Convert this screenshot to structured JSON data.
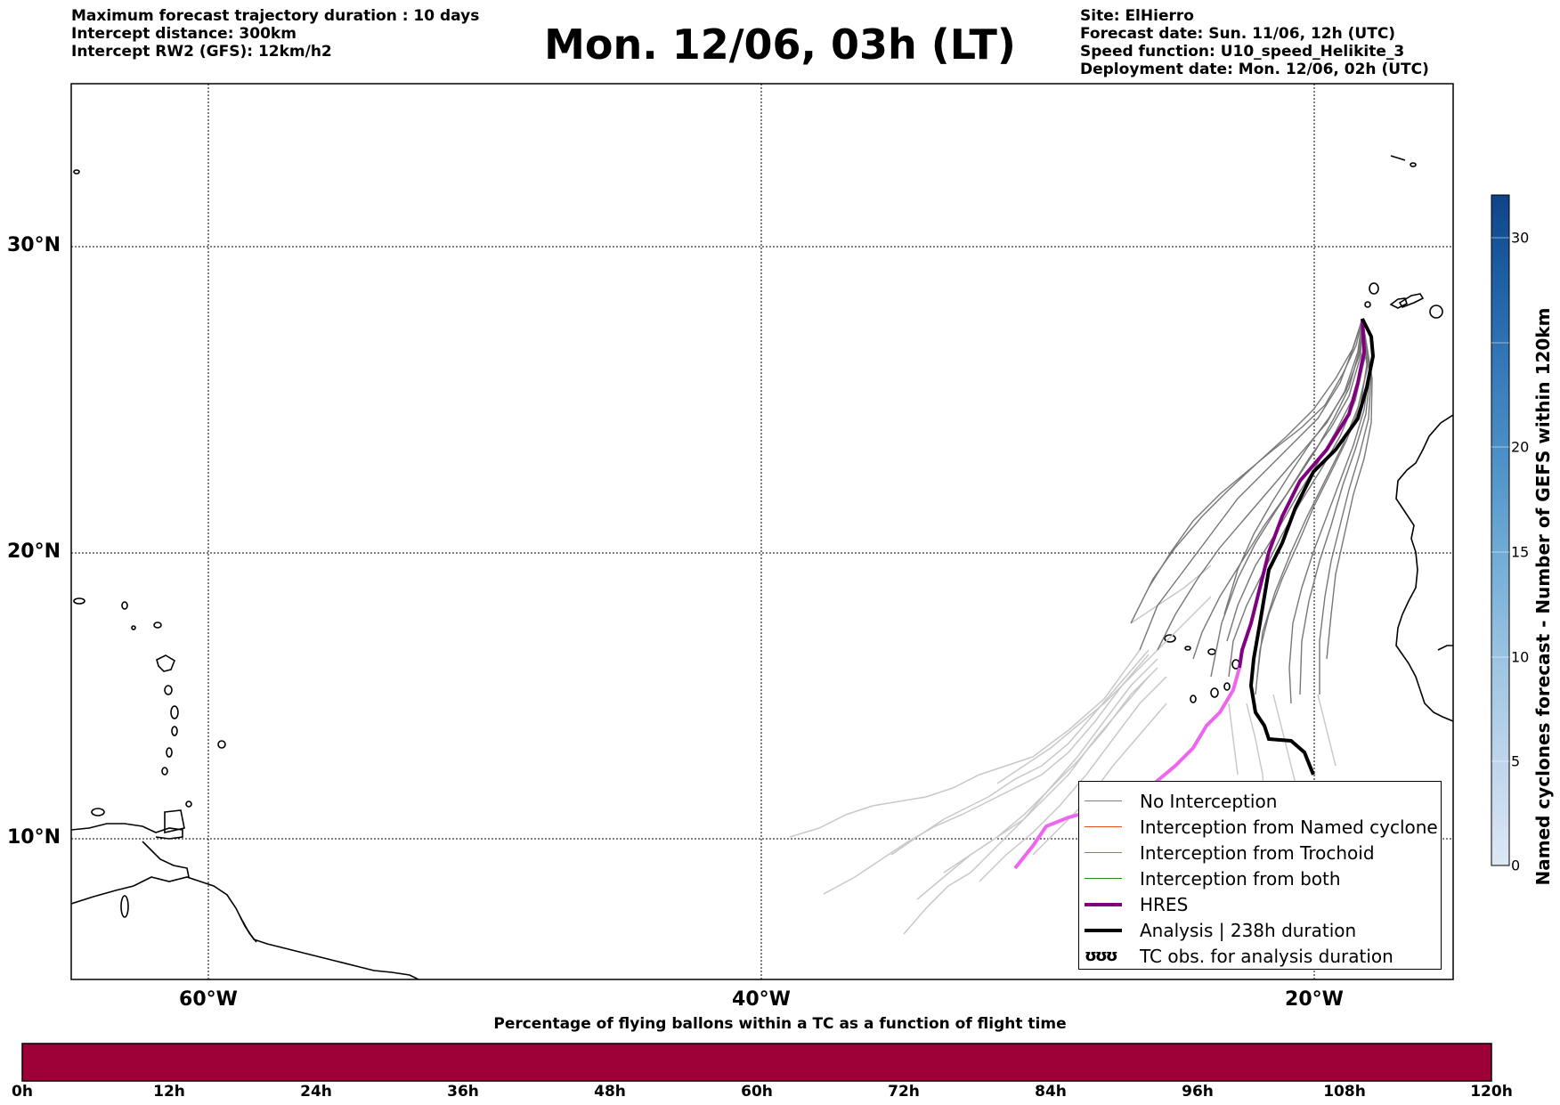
{
  "header_left": {
    "line1": "Maximum forecast trajectory duration : 10 days",
    "line2": "Intercept distance: 300km",
    "line3": "Intercept RW2 (GFS):  12km/h2"
  },
  "main_title": "Mon. 12/06, 03h (LT)",
  "header_right": {
    "site": "Site: ElHierro",
    "forecast_date": "Forecast date: Sun. 11/06, 12h (UTC)",
    "speed_function": "Speed function: U10_speed_Helikite_3",
    "deployment_date": "Deployment date: Mon. 12/06, 02h (UTC)"
  },
  "map": {
    "lat_labels": [
      "30°N",
      "20°N",
      "10°N"
    ],
    "lon_labels": [
      "60°W",
      "40°W",
      "20°W"
    ],
    "gridlines": "dotted"
  },
  "legend": {
    "items": [
      {
        "label": "No Interception",
        "color": "#808080",
        "style": "thin"
      },
      {
        "label": "Interception from Named cyclone",
        "color": "#e8501f",
        "style": "thin"
      },
      {
        "label": "Interception from Trochoid",
        "color": "#8b8b2a",
        "style": "thin"
      },
      {
        "label": "Interception from both",
        "color": "#2a8a2a",
        "style": "thin"
      },
      {
        "label": "HRES",
        "color": "#800080",
        "style": "thick"
      },
      {
        "label": "Analysis | 238h duration",
        "color": "#000000",
        "style": "thick"
      },
      {
        "label": "TC obs. for analysis duration",
        "symbol": "ʊʊʊ"
      }
    ]
  },
  "colorbar": {
    "title": "Named cyclones forecast - Number of GEFS within 120km",
    "ticks": [
      "30",
      "20",
      "15",
      "10",
      "5",
      "0"
    ],
    "colors": [
      "#dde8f5",
      "#c0d6ec",
      "#9ec5e2",
      "#74aed7",
      "#4f92c7",
      "#3478b8",
      "#1d5ea3",
      "#0f4487"
    ]
  },
  "percentage_bar": {
    "title": "Percentage of flying ballons within a TC as a function of flight time",
    "ticks": [
      "0h",
      "12h",
      "24h",
      "36h",
      "48h",
      "60h",
      "72h",
      "84h",
      "96h",
      "108h",
      "120h"
    ],
    "color": "#9e0038"
  }
}
